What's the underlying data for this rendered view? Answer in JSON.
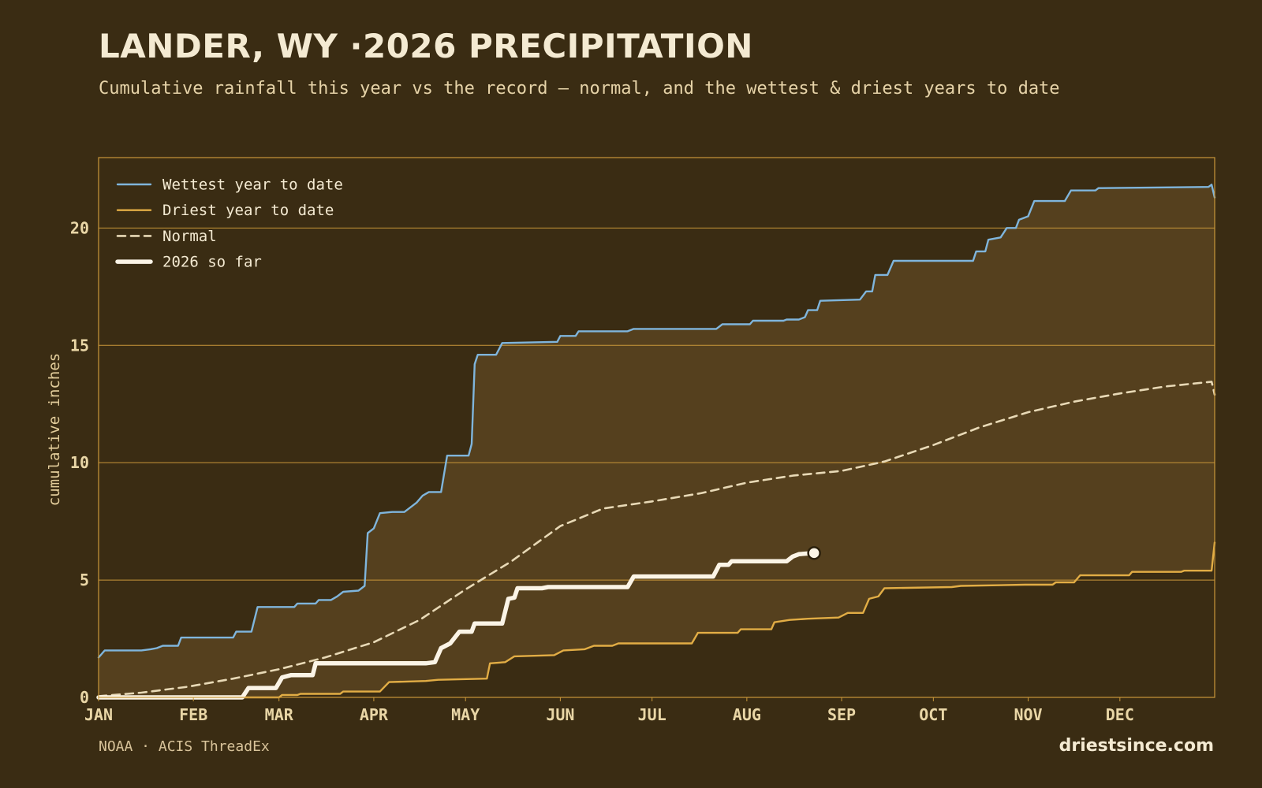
{
  "title": "LANDER, WY ·2026 PRECIPITATION",
  "subtitle": "Cumulative rainfall this year vs the record — normal, and the wettest & driest years to date",
  "source": "NOAA · ACIS ThreadEx",
  "brand": "driestsince.com",
  "colors": {
    "background": "#3a2c13",
    "band_fill": "#55401e",
    "grid": "#c9973a",
    "wettest": "#7fb5dc",
    "driest": "#e2ad45",
    "normal": "#e8d9b6",
    "current": "#fbf4e6"
  },
  "chart_data": {
    "type": "line",
    "title": "LANDER, WY ·2026 PRECIPITATION",
    "xlabel": "",
    "ylabel": "cumulative inches",
    "ylim": [
      0,
      23
    ],
    "xlim": [
      1,
      366
    ],
    "x_unit": "day of year",
    "month_ticks": [
      {
        "label": "JAN",
        "day": 1
      },
      {
        "label": "FEB",
        "day": 32
      },
      {
        "label": "MAR",
        "day": 60
      },
      {
        "label": "APR",
        "day": 91
      },
      {
        "label": "MAY",
        "day": 121
      },
      {
        "label": "JUN",
        "day": 152
      },
      {
        "label": "JUL",
        "day": 182
      },
      {
        "label": "AUG",
        "day": 213
      },
      {
        "label": "SEP",
        "day": 244
      },
      {
        "label": "OCT",
        "day": 274
      },
      {
        "label": "NOV",
        "day": 305
      },
      {
        "label": "DEC",
        "day": 335
      }
    ],
    "yticks": [
      0,
      5,
      10,
      15,
      20
    ],
    "grid": true,
    "legend_position": "top-left",
    "band": {
      "between": [
        "Wettest year to date",
        "Driest year to date"
      ]
    },
    "series": [
      {
        "name": "Wettest year to date",
        "style": "solid",
        "points": [
          [
            1,
            1.7
          ],
          [
            3,
            2.0
          ],
          [
            15,
            2.0
          ],
          [
            18,
            2.05
          ],
          [
            20,
            2.1
          ],
          [
            22,
            2.2
          ],
          [
            27,
            2.2
          ],
          [
            28,
            2.55
          ],
          [
            45,
            2.55
          ],
          [
            46,
            2.8
          ],
          [
            51,
            2.8
          ],
          [
            53,
            3.85
          ],
          [
            65,
            3.85
          ],
          [
            66,
            4.0
          ],
          [
            72,
            4.0
          ],
          [
            73,
            4.15
          ],
          [
            77,
            4.15
          ],
          [
            79,
            4.3
          ],
          [
            81,
            4.5
          ],
          [
            86,
            4.55
          ],
          [
            88,
            4.75
          ],
          [
            89,
            7.0
          ],
          [
            91,
            7.2
          ],
          [
            93,
            7.85
          ],
          [
            97,
            7.9
          ],
          [
            101,
            7.9
          ],
          [
            103,
            8.1
          ],
          [
            105,
            8.3
          ],
          [
            107,
            8.6
          ],
          [
            109,
            8.75
          ],
          [
            113,
            8.75
          ],
          [
            115,
            10.3
          ],
          [
            122,
            10.3
          ],
          [
            123,
            10.8
          ],
          [
            124,
            14.2
          ],
          [
            125,
            14.6
          ],
          [
            131,
            14.6
          ],
          [
            133,
            15.1
          ],
          [
            151,
            15.15
          ],
          [
            152,
            15.4
          ],
          [
            157,
            15.4
          ],
          [
            158,
            15.6
          ],
          [
            174,
            15.6
          ],
          [
            176,
            15.7
          ],
          [
            203,
            15.7
          ],
          [
            205,
            15.9
          ],
          [
            214,
            15.9
          ],
          [
            215,
            16.05
          ],
          [
            225,
            16.05
          ],
          [
            226,
            16.1
          ],
          [
            230,
            16.1
          ],
          [
            232,
            16.2
          ],
          [
            233,
            16.5
          ],
          [
            236,
            16.5
          ],
          [
            237,
            16.9
          ],
          [
            250,
            16.95
          ],
          [
            252,
            17.3
          ],
          [
            254,
            17.3
          ],
          [
            255,
            18.0
          ],
          [
            259,
            18.0
          ],
          [
            261,
            18.6
          ],
          [
            287,
            18.6
          ],
          [
            288,
            19.0
          ],
          [
            291,
            19.0
          ],
          [
            292,
            19.5
          ],
          [
            296,
            19.6
          ],
          [
            298,
            20.0
          ],
          [
            301,
            20.0
          ],
          [
            302,
            20.35
          ],
          [
            305,
            20.5
          ],
          [
            307,
            21.15
          ],
          [
            317,
            21.15
          ],
          [
            319,
            21.6
          ],
          [
            327,
            21.6
          ],
          [
            328,
            21.7
          ],
          [
            364,
            21.75
          ],
          [
            365,
            21.85
          ],
          [
            366,
            21.3
          ]
        ]
      },
      {
        "name": "Driest year to date",
        "style": "solid",
        "points": [
          [
            1,
            0.0
          ],
          [
            60,
            0.0
          ],
          [
            61,
            0.1
          ],
          [
            66,
            0.1
          ],
          [
            67,
            0.15
          ],
          [
            80,
            0.15
          ],
          [
            81,
            0.25
          ],
          [
            93,
            0.25
          ],
          [
            96,
            0.65
          ],
          [
            108,
            0.7
          ],
          [
            112,
            0.75
          ],
          [
            128,
            0.8
          ],
          [
            129,
            1.45
          ],
          [
            134,
            1.5
          ],
          [
            137,
            1.75
          ],
          [
            150,
            1.8
          ],
          [
            153,
            2.0
          ],
          [
            160,
            2.05
          ],
          [
            163,
            2.2
          ],
          [
            169,
            2.2
          ],
          [
            171,
            2.3
          ],
          [
            195,
            2.3
          ],
          [
            197,
            2.75
          ],
          [
            210,
            2.75
          ],
          [
            211,
            2.9
          ],
          [
            221,
            2.9
          ],
          [
            222,
            3.2
          ],
          [
            227,
            3.3
          ],
          [
            233,
            3.35
          ],
          [
            243,
            3.4
          ],
          [
            246,
            3.6
          ],
          [
            251,
            3.6
          ],
          [
            253,
            4.2
          ],
          [
            256,
            4.3
          ],
          [
            258,
            4.65
          ],
          [
            280,
            4.7
          ],
          [
            283,
            4.75
          ],
          [
            304,
            4.8
          ],
          [
            313,
            4.8
          ],
          [
            314,
            4.9
          ],
          [
            320,
            4.9
          ],
          [
            322,
            5.2
          ],
          [
            338,
            5.2
          ],
          [
            339,
            5.35
          ],
          [
            355,
            5.35
          ],
          [
            356,
            5.4
          ],
          [
            365,
            5.4
          ],
          [
            366,
            6.6
          ]
        ]
      },
      {
        "name": "Normal",
        "style": "dashed",
        "points": [
          [
            1,
            0.05
          ],
          [
            15,
            0.2
          ],
          [
            30,
            0.45
          ],
          [
            45,
            0.8
          ],
          [
            60,
            1.2
          ],
          [
            75,
            1.7
          ],
          [
            91,
            2.35
          ],
          [
            106,
            3.3
          ],
          [
            121,
            4.6
          ],
          [
            136,
            5.8
          ],
          [
            152,
            7.3
          ],
          [
            166,
            8.05
          ],
          [
            182,
            8.35
          ],
          [
            198,
            8.7
          ],
          [
            213,
            9.15
          ],
          [
            228,
            9.45
          ],
          [
            244,
            9.65
          ],
          [
            258,
            10.05
          ],
          [
            274,
            10.75
          ],
          [
            289,
            11.5
          ],
          [
            305,
            12.15
          ],
          [
            320,
            12.6
          ],
          [
            335,
            12.95
          ],
          [
            350,
            13.25
          ],
          [
            365,
            13.45
          ],
          [
            366,
            12.9
          ]
        ]
      },
      {
        "name": "2026 so far",
        "style": "thick",
        "points": [
          [
            1,
            0.0
          ],
          [
            48,
            0.0
          ],
          [
            50,
            0.4
          ],
          [
            59,
            0.4
          ],
          [
            61,
            0.85
          ],
          [
            64,
            0.95
          ],
          [
            71,
            0.95
          ],
          [
            72,
            1.45
          ],
          [
            108,
            1.45
          ],
          [
            111,
            1.5
          ],
          [
            113,
            2.1
          ],
          [
            116,
            2.3
          ],
          [
            119,
            2.8
          ],
          [
            123,
            2.8
          ],
          [
            124,
            3.15
          ],
          [
            133,
            3.15
          ],
          [
            135,
            4.2
          ],
          [
            137,
            4.25
          ],
          [
            138,
            4.65
          ],
          [
            146,
            4.65
          ],
          [
            148,
            4.7
          ],
          [
            174,
            4.7
          ],
          [
            176,
            5.15
          ],
          [
            202,
            5.15
          ],
          [
            204,
            5.65
          ],
          [
            207,
            5.65
          ],
          [
            208,
            5.8
          ],
          [
            226,
            5.8
          ],
          [
            228,
            6.0
          ],
          [
            230,
            6.1
          ],
          [
            235,
            6.15
          ]
        ],
        "endpoint_marker": true
      }
    ]
  }
}
